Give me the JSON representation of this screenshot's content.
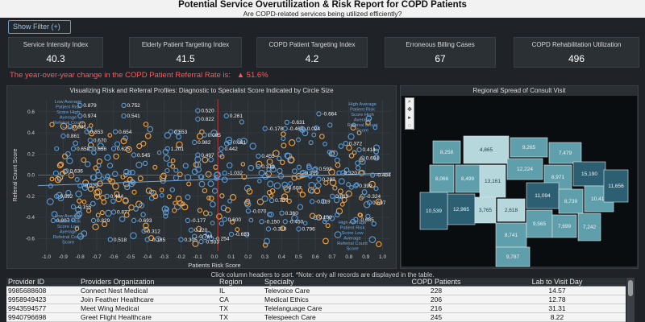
{
  "header": {
    "title": "Potential Service Overutilization & Risk Report for COPD Patients",
    "subtitle": "Are COPD-related services being utilized efficiently?"
  },
  "filter": {
    "label": "Show Filter (+)"
  },
  "kpis": [
    {
      "label": "Service Intensity Index",
      "value": "40.3"
    },
    {
      "label": "Elderly Patient Targeting Index",
      "value": "41.5"
    },
    {
      "label": "COPD Patient Targeting Index",
      "value": "4.2"
    },
    {
      "label": "Erroneous Billing Cases",
      "value": "67"
    },
    {
      "label": "COPD Rehabilitation Utilization",
      "value": "496"
    }
  ],
  "yoy": {
    "text": "The year-over-year change in the COPD Patient Referral Rate is:",
    "value": "▲ 51.6%"
  },
  "scatter": {
    "title": "Visualizing Risk and Referral Profiles: Diagnostic to Specialist Score Indicated by Circle Size",
    "xlabel": "Patients Risk Score",
    "ylabel": "Referral Count Score",
    "xticks": [
      "-1.0",
      "-0.9",
      "-0.8",
      "-0.7",
      "-0.6",
      "-0.5",
      "-0.4",
      "-0.3",
      "-0.2",
      "-0.1",
      "0.0",
      "0.1",
      "0.2",
      "0.3",
      "0.4",
      "0.5",
      "0.6",
      "0.7",
      "0.8",
      "0.9",
      "1.0"
    ],
    "yticks": [
      "0.6",
      "0.4",
      "0.2",
      "0.0",
      "-0.2",
      "-0.4",
      "-0.6"
    ],
    "quadrant_labels": {
      "tl": "Low Average Patient Risk Score High Average Referral Count Score",
      "tr": "High Average Patient Risk Score High Average Referral Count Score",
      "bl": "Low Average Patient Risk Score Low Average Referral Count Score",
      "br": "High Average Patient Risk Score Low Average Referral Count Score"
    },
    "colors": {
      "blue": "#5b9bd5",
      "orange": "#f4a340",
      "ref": "#e03030"
    },
    "point_labels": [
      {
        "x": -0.78,
        "y": 0.66,
        "t": "0.879"
      },
      {
        "x": -0.52,
        "y": 0.66,
        "t": "0.752"
      },
      {
        "x": -0.78,
        "y": 0.56,
        "t": "0.974"
      },
      {
        "x": -0.52,
        "y": 0.56,
        "t": "0.541"
      },
      {
        "x": -0.84,
        "y": 0.46,
        "t": "0.831"
      },
      {
        "x": -0.88,
        "y": 0.37,
        "t": "0.861"
      },
      {
        "x": -0.74,
        "y": 0.41,
        "t": "0.853"
      },
      {
        "x": -0.57,
        "y": 0.41,
        "t": "0.654"
      },
      {
        "x": -0.24,
        "y": 0.41,
        "t": "0.553"
      },
      {
        "x": -0.08,
        "y": 0.61,
        "t": "0.520"
      },
      {
        "x": 0.09,
        "y": 0.56,
        "t": "0.261"
      },
      {
        "x": -0.08,
        "y": 0.53,
        "t": "0.822"
      },
      {
        "x": 0.64,
        "y": 0.58,
        "t": "-0.664"
      },
      {
        "x": 0.45,
        "y": 0.5,
        "t": "-0.631"
      },
      {
        "x": 0.32,
        "y": 0.44,
        "t": "-0.178"
      },
      {
        "x": 0.44,
        "y": 0.44,
        "t": "-0.464"
      },
      {
        "x": 0.54,
        "y": 0.44,
        "t": "-0.024"
      },
      {
        "x": -0.04,
        "y": 0.38,
        "t": "0.095"
      },
      {
        "x": -0.72,
        "y": 0.33,
        "t": "0.670"
      },
      {
        "x": -0.1,
        "y": 0.31,
        "t": "0.982"
      },
      {
        "x": 0.11,
        "y": 0.31,
        "t": "0.081"
      },
      {
        "x": 0.8,
        "y": 0.3,
        "t": "0.372"
      },
      {
        "x": -0.82,
        "y": 0.25,
        "t": "0.658"
      },
      {
        "x": -0.72,
        "y": 0.25,
        "t": "0.656"
      },
      {
        "x": -0.58,
        "y": 0.25,
        "t": "0.625"
      },
      {
        "x": -0.26,
        "y": 0.25,
        "t": "1.201"
      },
      {
        "x": 0.06,
        "y": 0.25,
        "t": "0.442"
      },
      {
        "x": 0.88,
        "y": 0.24,
        "t": "0.414"
      },
      {
        "x": -0.46,
        "y": 0.19,
        "t": "0.545"
      },
      {
        "x": -0.08,
        "y": 0.19,
        "t": "0.497"
      },
      {
        "x": 0.28,
        "y": 0.18,
        "t": "0.455"
      },
      {
        "x": 0.9,
        "y": 0.16,
        "t": "0.694"
      },
      {
        "x": -0.86,
        "y": 0.04,
        "t": "0.636"
      },
      {
        "x": 0.28,
        "y": 0.08,
        "t": "0.319"
      },
      {
        "x": 0.62,
        "y": 0.06,
        "t": "0.593"
      },
      {
        "x": 0.08,
        "y": 0.02,
        "t": "-1.032"
      },
      {
        "x": 0.54,
        "y": 0.02,
        "t": "0.919"
      },
      {
        "x": 0.76,
        "y": 0.02,
        "t": "-0.320"
      },
      {
        "x": 0.96,
        "y": 0.0,
        "t": "-0.484"
      },
      {
        "x": 0.64,
        "y": -0.04,
        "t": "0.282"
      },
      {
        "x": 0.86,
        "y": -0.1,
        "t": "0.399"
      },
      {
        "x": -0.78,
        "y": -0.1,
        "t": "-0.029"
      },
      {
        "x": 0.44,
        "y": -0.12,
        "t": "0.607"
      },
      {
        "x": -0.92,
        "y": -0.2,
        "t": "0.892"
      },
      {
        "x": -0.62,
        "y": -0.2,
        "t": "0.494"
      },
      {
        "x": 0.72,
        "y": -0.2,
        "t": "0.812"
      },
      {
        "x": 0.9,
        "y": -0.2,
        "t": "-0.324"
      },
      {
        "x": 0.6,
        "y": -0.25,
        "t": "-0.319"
      },
      {
        "x": 0.36,
        "y": -0.24,
        "t": "0.707"
      },
      {
        "x": 0.94,
        "y": -0.26,
        "t": "0.697"
      },
      {
        "x": -0.82,
        "y": -0.3,
        "t": "-0.155"
      },
      {
        "x": -0.58,
        "y": -0.35,
        "t": "0.877"
      },
      {
        "x": 0.22,
        "y": -0.34,
        "t": "-0.070"
      },
      {
        "x": 0.42,
        "y": -0.36,
        "t": "0.360"
      },
      {
        "x": 0.62,
        "y": -0.4,
        "t": "0.100"
      },
      {
        "x": 0.86,
        "y": -0.42,
        "t": "-0.685"
      },
      {
        "x": -0.94,
        "y": -0.43,
        "t": "0.907"
      },
      {
        "x": -0.7,
        "y": -0.43,
        "t": "0.829"
      },
      {
        "x": -0.46,
        "y": -0.43,
        "t": "-0.693"
      },
      {
        "x": -0.14,
        "y": -0.43,
        "t": "-0.177"
      },
      {
        "x": 0.08,
        "y": -0.42,
        "t": "0.600"
      },
      {
        "x": 0.3,
        "y": -0.44,
        "t": "-0.150"
      },
      {
        "x": 0.44,
        "y": -0.44,
        "t": "-0.450"
      },
      {
        "x": -0.12,
        "y": -0.52,
        "t": "0.120"
      },
      {
        "x": -0.4,
        "y": -0.53,
        "t": "0.312"
      },
      {
        "x": 0.34,
        "y": -0.51,
        "t": "-0.310"
      },
      {
        "x": 0.52,
        "y": -0.51,
        "t": "0.796"
      },
      {
        "x": -0.1,
        "y": -0.58,
        "t": "-0.744"
      },
      {
        "x": 0.12,
        "y": -0.56,
        "t": "-0.653"
      },
      {
        "x": -0.6,
        "y": -0.61,
        "t": "0.518"
      },
      {
        "x": -0.38,
        "y": -0.61,
        "t": "-0.185"
      },
      {
        "x": -0.18,
        "y": -0.61,
        "t": "0.305"
      },
      {
        "x": 0.0,
        "y": -0.6,
        "t": "-0.254"
      },
      {
        "x": -0.06,
        "y": -0.63,
        "t": "-0.933"
      }
    ]
  },
  "map": {
    "title": "Regional Spread of Consult Visit",
    "colors": {
      "water": "#0a0d10",
      "light": "#b6d7dc",
      "mid": "#5f9eab",
      "dark": "#2d5f72",
      "border": "#d9e8ea"
    },
    "regions": [
      {
        "label": "8,258",
        "shade": "mid"
      },
      {
        "label": "4,865",
        "shade": "light"
      },
      {
        "label": "9,265",
        "shade": "mid"
      },
      {
        "label": "7,479",
        "shade": "mid"
      },
      {
        "label": "8,066",
        "shade": "mid"
      },
      {
        "label": "8,499",
        "shade": "mid"
      },
      {
        "label": "13,161",
        "shade": "light"
      },
      {
        "label": "12,224",
        "shade": "mid"
      },
      {
        "label": "8,971",
        "shade": "mid"
      },
      {
        "label": "15,190",
        "shade": "dark"
      },
      {
        "label": "12,965",
        "shade": "dark"
      },
      {
        "label": "3,765",
        "shade": "light"
      },
      {
        "label": "2,618",
        "shade": "light"
      },
      {
        "label": "11,094",
        "shade": "dark"
      },
      {
        "label": "8,739",
        "shade": "mid"
      },
      {
        "label": "10,419",
        "shade": "mid"
      },
      {
        "label": "10,539",
        "shade": "dark"
      },
      {
        "label": "8,741",
        "shade": "mid"
      },
      {
        "label": "9,565",
        "shade": "mid"
      },
      {
        "label": "7,699",
        "shade": "mid"
      },
      {
        "label": "9,787",
        "shade": "mid"
      },
      {
        "label": "7,242",
        "shade": "mid"
      },
      {
        "label": "11,656",
        "shade": "dark"
      }
    ]
  },
  "table": {
    "caption": "Click column headers to sort. *Note: only all records are displayed in the table.",
    "columns": [
      "Provider ID",
      "Providers Organization",
      "Region",
      "Specialty",
      "COPD Patients",
      "Lab to Visit Day"
    ],
    "rows": [
      [
        "9985688608",
        "Connect Nest Medical",
        "IL",
        "Televoice Care",
        "228",
        "14.57"
      ],
      [
        "9958949423",
        "Join Feather Healthcare",
        "CA",
        "Medical Ethics",
        "206",
        "12.78"
      ],
      [
        "9943594577",
        "Meet Wing Medical",
        "TX",
        "Telelanguage Care",
        "216",
        "31.31"
      ],
      [
        "9940796698",
        "Greet Flight Healthcare",
        "TX",
        "Telespeech Care",
        "245",
        "8.22"
      ]
    ]
  }
}
